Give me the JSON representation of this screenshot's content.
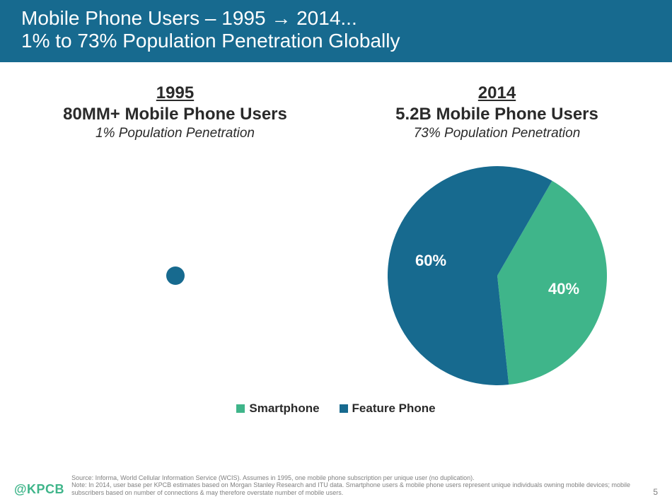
{
  "colors": {
    "header_bg": "#176a8f",
    "header_text": "#ffffff",
    "text_dark": "#2a2a2a",
    "smartphone": "#3fb58a",
    "feature_phone": "#176a8f",
    "source_text": "#808080",
    "kpcb": "#3fb58a"
  },
  "typography": {
    "title_fontsize": 28,
    "year_fontsize": 24,
    "users_fontsize": 24,
    "penetration_fontsize": 19,
    "legend_fontsize": 17,
    "pie_label_fontsize": 22,
    "source_fontsize": 9,
    "kpcb_fontsize": 18,
    "pagenum_fontsize": 12
  },
  "title": {
    "line1": "Mobile Phone Users – 1995 → 2014...",
    "line2": "1% to 73% Population Penetration Globally"
  },
  "left": {
    "year": "1995",
    "users": "80MM+ Mobile Phone Users",
    "penetration": "1% Population Penetration",
    "pie": {
      "type": "pie",
      "radius": 13,
      "slices": [
        {
          "label": "",
          "value": 100,
          "color": "#176a8f"
        }
      ]
    }
  },
  "right": {
    "year": "2014",
    "users": "5.2B Mobile Phone Users",
    "penetration": "73% Population Penetration",
    "pie": {
      "type": "pie",
      "radius": 155,
      "start_angle_deg": -60,
      "slices": [
        {
          "label": "40%",
          "value": 40,
          "color": "#3fb58a"
        },
        {
          "label": "60%",
          "value": 60,
          "color": "#176a8f"
        }
      ]
    }
  },
  "legend": {
    "items": [
      {
        "label": "Smartphone",
        "color": "#3fb58a"
      },
      {
        "label": "Feature Phone",
        "color": "#176a8f"
      }
    ]
  },
  "footer": {
    "kpcb": "@KPCB",
    "source": "Source: Informa, World Cellular Information Service (WCIS). Assumes in 1995, one mobile phone subscription per unique user (no duplication).\nNote: In 2014, user base per KPCB estimates based on Morgan Stanley Research and ITU data. Smartphone users & mobile phone users represent unique individuals owning mobile devices; mobile subscribers based on number of connections & may therefore overstate number of mobile users.",
    "page_number": "5"
  }
}
